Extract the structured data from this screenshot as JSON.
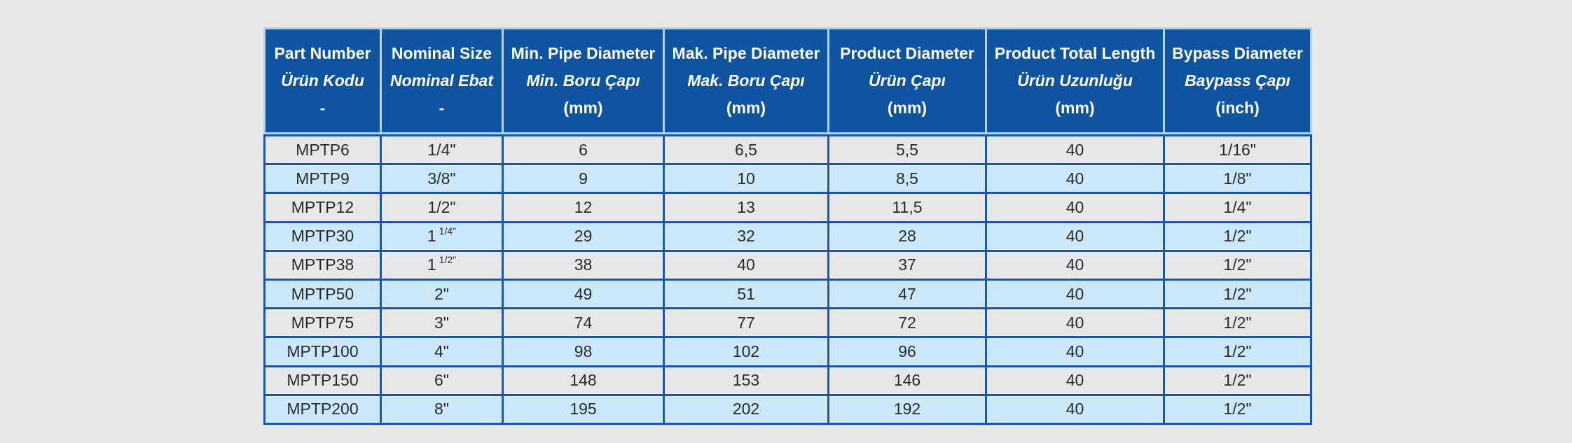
{
  "page": {
    "background_color": "#e8e8e8"
  },
  "table": {
    "colors": {
      "header_bg": "#0f54a1",
      "header_text": "#ffffff",
      "header_divider": "#aed3ee",
      "body_border": "#1c55a8",
      "row_gray_bg": "#e7e7e7",
      "row_blue_bg": "#cae8fa",
      "body_text": "#2b2b2b"
    },
    "header": {
      "columns": [
        {
          "en": "Part Number",
          "tr": "Ürün Kodu",
          "unit": "-"
        },
        {
          "en": "Nominal Size",
          "tr": "Nominal Ebat",
          "unit": "-"
        },
        {
          "en": "Min. Pipe Diameter",
          "tr": "Min. Boru Çapı",
          "unit": "(mm)"
        },
        {
          "en": "Mak. Pipe Diameter",
          "tr": "Mak. Boru Çapı",
          "unit": "(mm)"
        },
        {
          "en": "Product Diameter",
          "tr": "Ürün Çapı",
          "unit": "(mm)"
        },
        {
          "en": "Product Total Length",
          "tr": "Ürün Uzunluğu",
          "unit": "(mm)"
        },
        {
          "en": "Bypass Diameter",
          "tr": "Baypass Çapı",
          "unit": "(inch)"
        }
      ]
    },
    "rows": [
      {
        "part": "MPTP6",
        "nominal": "1/4\"",
        "min": "6",
        "max": "6,5",
        "product_d": "5,5",
        "length": "40",
        "bypass": "1/16\""
      },
      {
        "part": "MPTP9",
        "nominal": "3/8\"",
        "min": "9",
        "max": "10",
        "product_d": "8,5",
        "length": "40",
        "bypass": "1/8\""
      },
      {
        "part": "MPTP12",
        "nominal": "1/2\"",
        "min": "12",
        "max": "13",
        "product_d": "11,5",
        "length": "40",
        "bypass": "1/4\""
      },
      {
        "part": "MPTP30",
        "nominal": {
          "base": "1",
          "sup": "1/4\""
        },
        "min": "29",
        "max": "32",
        "product_d": "28",
        "length": "40",
        "bypass": "1/2\""
      },
      {
        "part": "MPTP38",
        "nominal": {
          "base": "1",
          "sup": "1/2\""
        },
        "min": "38",
        "max": "40",
        "product_d": "37",
        "length": "40",
        "bypass": "1/2\""
      },
      {
        "part": "MPTP50",
        "nominal": "2\"",
        "min": "49",
        "max": "51",
        "product_d": "47",
        "length": "40",
        "bypass": "1/2\""
      },
      {
        "part": "MPTP75",
        "nominal": "3\"",
        "min": "74",
        "max": "77",
        "product_d": "72",
        "length": "40",
        "bypass": "1/2\""
      },
      {
        "part": "MPTP100",
        "nominal": "4\"",
        "min": "98",
        "max": "102",
        "product_d": "96",
        "length": "40",
        "bypass": "1/2\""
      },
      {
        "part": "MPTP150",
        "nominal": "6\"",
        "min": "148",
        "max": "153",
        "product_d": "146",
        "length": "40",
        "bypass": "1/2\""
      },
      {
        "part": "MPTP200",
        "nominal": "8\"",
        "min": "195",
        "max": "202",
        "product_d": "192",
        "length": "40",
        "bypass": "1/2\""
      }
    ]
  }
}
